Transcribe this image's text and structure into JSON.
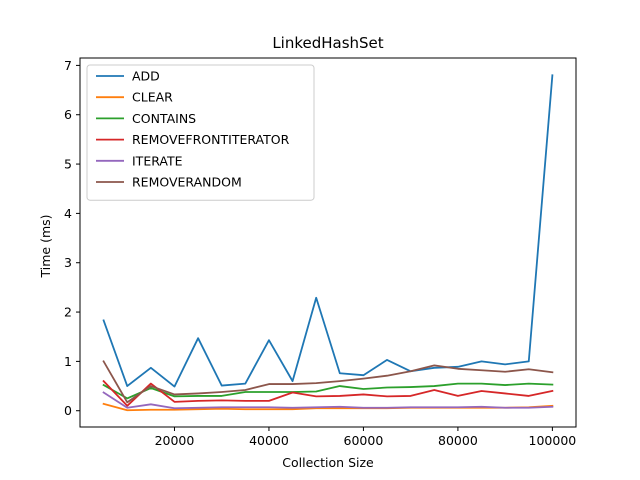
{
  "chart_data": {
    "type": "line",
    "title": "LinkedHashSet",
    "xlabel": "Collection Size",
    "ylabel": "Time (ms)",
    "xlim": [
      0,
      105000
    ],
    "ylim": [
      -0.33,
      7.15
    ],
    "x_ticks": [
      20000,
      40000,
      60000,
      80000,
      100000
    ],
    "y_ticks": [
      0,
      1,
      2,
      3,
      4,
      5,
      6,
      7
    ],
    "x": [
      5000,
      10000,
      15000,
      20000,
      25000,
      30000,
      35000,
      40000,
      45000,
      50000,
      55000,
      60000,
      65000,
      70000,
      75000,
      80000,
      85000,
      90000,
      95000,
      100000
    ],
    "legend_position": "top-left",
    "series": [
      {
        "name": "ADD",
        "color": "#1f77b4",
        "values": [
          1.83,
          0.5,
          0.87,
          0.49,
          1.47,
          0.51,
          0.55,
          1.43,
          0.6,
          2.29,
          0.76,
          0.72,
          1.03,
          0.8,
          0.87,
          0.89,
          1.0,
          0.94,
          1.0,
          6.8
        ]
      },
      {
        "name": "CLEAR",
        "color": "#ff7f0e",
        "values": [
          0.14,
          0.01,
          0.02,
          0.02,
          0.03,
          0.04,
          0.03,
          0.03,
          0.03,
          0.05,
          0.05,
          0.05,
          0.05,
          0.06,
          0.06,
          0.06,
          0.06,
          0.06,
          0.07,
          0.1
        ]
      },
      {
        "name": "CONTAINS",
        "color": "#2ca02c",
        "values": [
          0.52,
          0.25,
          0.46,
          0.29,
          0.3,
          0.3,
          0.38,
          0.38,
          0.38,
          0.39,
          0.5,
          0.44,
          0.47,
          0.48,
          0.5,
          0.55,
          0.55,
          0.52,
          0.55,
          0.53
        ]
      },
      {
        "name": "REMOVEFRONTITERATOR",
        "color": "#d62728",
        "values": [
          0.6,
          0.1,
          0.55,
          0.18,
          0.2,
          0.21,
          0.2,
          0.2,
          0.37,
          0.29,
          0.3,
          0.33,
          0.29,
          0.3,
          0.42,
          0.3,
          0.4,
          0.35,
          0.3,
          0.4
        ]
      },
      {
        "name": "ITERATE",
        "color": "#9467bd",
        "values": [
          0.37,
          0.06,
          0.13,
          0.05,
          0.06,
          0.07,
          0.07,
          0.07,
          0.06,
          0.07,
          0.08,
          0.06,
          0.06,
          0.07,
          0.07,
          0.07,
          0.08,
          0.06,
          0.06,
          0.08
        ]
      },
      {
        "name": "REMOVERANDOM",
        "color": "#8c564b",
        "values": [
          1.0,
          0.17,
          0.5,
          0.33,
          0.35,
          0.38,
          0.42,
          0.54,
          0.54,
          0.56,
          0.6,
          0.65,
          0.71,
          0.8,
          0.92,
          0.85,
          0.82,
          0.79,
          0.84,
          0.78
        ]
      }
    ]
  }
}
